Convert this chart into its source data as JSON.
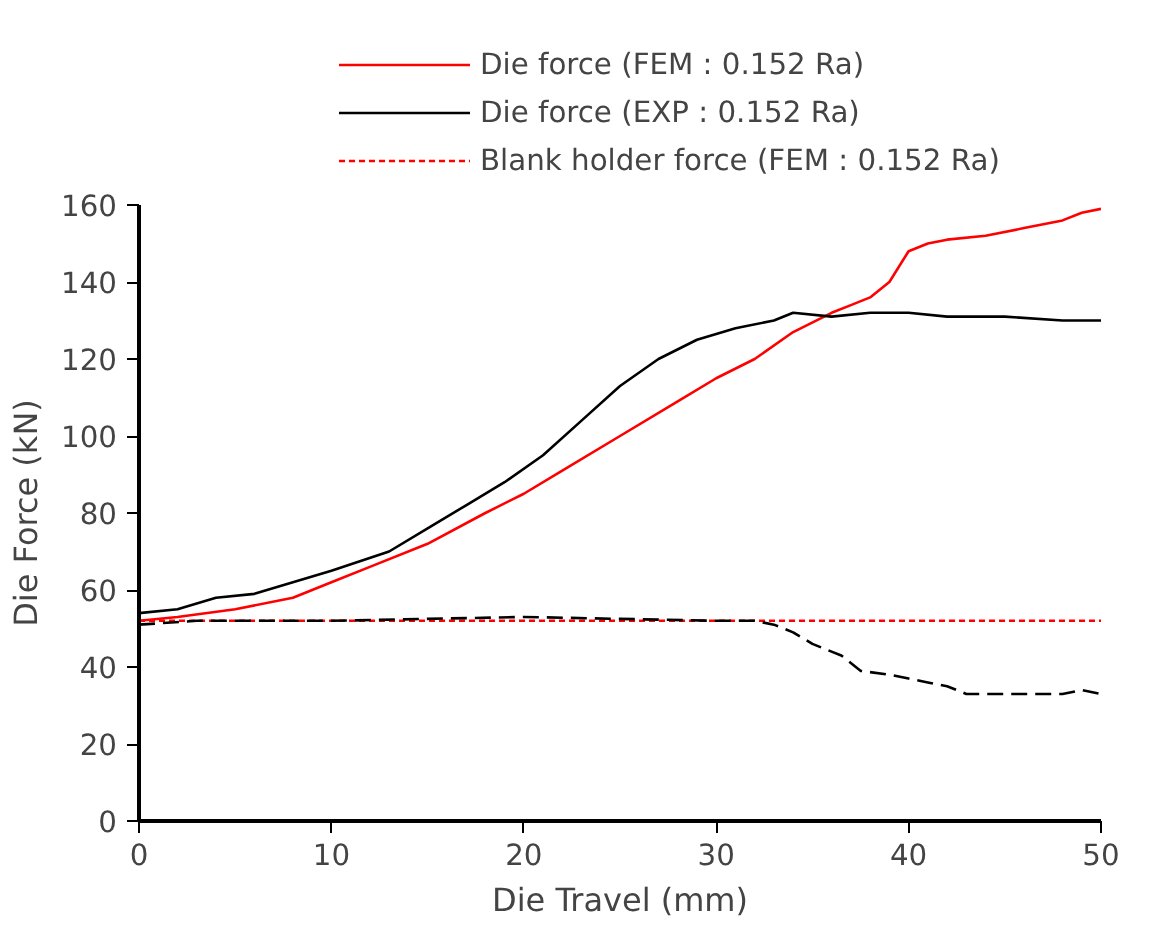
{
  "chart_data": {
    "type": "line",
    "xlabel": "Die Travel (mm)",
    "ylabel": "Die Force (kN)",
    "xlim": [
      0,
      50
    ],
    "ylim": [
      0,
      160
    ],
    "xticks": [
      0,
      10,
      20,
      30,
      40,
      50
    ],
    "yticks": [
      0,
      20,
      40,
      60,
      80,
      100,
      120,
      140,
      160
    ],
    "grid": false,
    "legend": "top",
    "marker": "none",
    "series": [
      {
        "name": "Die force (FEM : 0.152 Ra)",
        "color": "#ff0000",
        "line_style": "solid",
        "x": [
          0,
          2,
          5,
          8,
          10,
          12,
          15,
          18,
          20,
          22,
          25,
          28,
          30,
          32,
          34,
          36,
          37,
          38,
          39,
          40,
          41,
          42,
          44,
          46,
          48,
          49,
          50
        ],
        "values": [
          52,
          53,
          55,
          58,
          62,
          66,
          72,
          80,
          85,
          91,
          100,
          109,
          115,
          120,
          127,
          132,
          134,
          136,
          140,
          148,
          150,
          151,
          152,
          154,
          156,
          158,
          159
        ]
      },
      {
        "name": "Die force (EXP : 0.152 Ra)",
        "color": "#000000",
        "line_style": "solid",
        "x": [
          0,
          2,
          4,
          6,
          8,
          10,
          13,
          15,
          17,
          19,
          21,
          23,
          25,
          27,
          29,
          31,
          33,
          34,
          36,
          38,
          40,
          42,
          45,
          48,
          50
        ],
        "values": [
          54,
          55,
          58,
          59,
          62,
          65,
          70,
          76,
          82,
          88,
          95,
          104,
          113,
          120,
          125,
          128,
          130,
          132,
          131,
          132,
          132,
          131,
          131,
          130,
          130
        ]
      },
      {
        "name": "Blank holder force (FEM : 0.152 Ra)",
        "color": "#ff0000",
        "line_style": "dotted",
        "x": [
          0,
          50
        ],
        "values": [
          52,
          52
        ]
      },
      {
        "color": "#000000",
        "line_style": "dashed",
        "x": [
          0,
          3,
          10,
          20,
          30,
          32,
          33,
          34,
          35,
          36.5,
          37.5,
          39,
          40,
          41,
          42,
          43,
          45,
          48,
          49,
          50
        ],
        "values": [
          51,
          52,
          52,
          53,
          52,
          52,
          51,
          49,
          46,
          43,
          39,
          38,
          37,
          36,
          35,
          33,
          33,
          33,
          34,
          33
        ]
      }
    ]
  }
}
